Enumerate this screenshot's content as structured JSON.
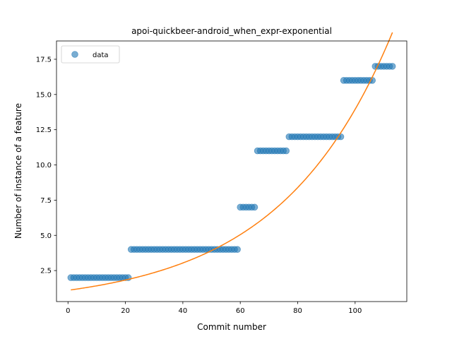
{
  "chart_data": {
    "type": "scatter",
    "title": "apoi-quickbeer-android_when_expr-exponential",
    "xlabel": "Commit number",
    "ylabel": "Number of instance of a feature",
    "xlim": [
      -4,
      118
    ],
    "ylim": [
      0.3,
      18.8
    ],
    "xticks": [
      0,
      20,
      40,
      60,
      80,
      100
    ],
    "yticks": [
      2.5,
      5.0,
      7.5,
      10.0,
      12.5,
      15.0,
      17.5
    ],
    "xtick_labels": [
      "0",
      "20",
      "40",
      "60",
      "80",
      "100"
    ],
    "ytick_labels": [
      "2.5",
      "5.0",
      "7.5",
      "10.0",
      "12.5",
      "15.0",
      "17.5"
    ],
    "grid": false,
    "legend": {
      "position": "top-left",
      "entries": [
        "data"
      ]
    },
    "colors": {
      "data": "#1f77b4",
      "fit": "#ff7f0e"
    },
    "series": [
      {
        "name": "data",
        "style": "markers",
        "runs": [
          {
            "x_start": 1,
            "x_end": 21,
            "y": 2
          },
          {
            "x_start": 22,
            "x_end": 59,
            "y": 4
          },
          {
            "x_start": 60,
            "x_end": 65,
            "y": 7
          },
          {
            "x_start": 66,
            "x_end": 76,
            "y": 11
          },
          {
            "x_start": 77,
            "x_end": 95,
            "y": 12
          },
          {
            "x_start": 96,
            "x_end": 106,
            "y": 16
          },
          {
            "x_start": 107,
            "x_end": 113,
            "y": 17
          }
        ]
      },
      {
        "style": "line",
        "function": "exponential",
        "a": 1.1,
        "b": 0.0254,
        "x_range": [
          1,
          113
        ]
      }
    ]
  }
}
